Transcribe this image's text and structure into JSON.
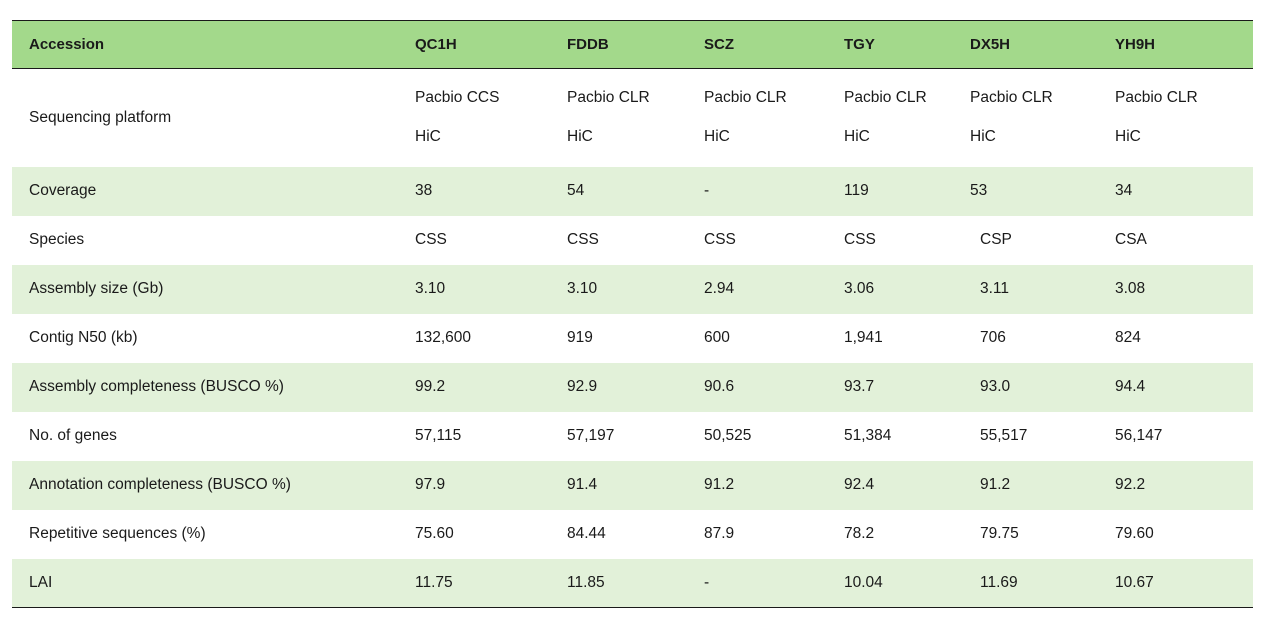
{
  "table": {
    "headers": [
      "Accession",
      "QC1H",
      "FDDB",
      "SCZ",
      "TGY",
      "DX5H",
      "YH9H"
    ],
    "platform_row": {
      "label": "Sequencing platform",
      "line1": [
        "Pacbio CCS",
        "Pacbio CLR",
        "Pacbio CLR",
        "Pacbio CLR",
        "Pacbio CLR",
        "Pacbio CLR"
      ],
      "line2": [
        "HiC",
        "HiC",
        "HiC",
        "HiC",
        "HiC",
        "HiC"
      ]
    },
    "rows": [
      {
        "label": "Coverage",
        "values": [
          "38",
          "54",
          "-",
          "119",
          "53",
          "34"
        ]
      },
      {
        "label": "Species",
        "values": [
          "CSS",
          "CSS",
          "CSS",
          "CSS",
          "CSP",
          "CSA"
        ]
      },
      {
        "label": "Assembly size (Gb)",
        "values": [
          "3.10",
          "3.10",
          "2.94",
          "3.06",
          "3.11",
          "3.08"
        ]
      },
      {
        "label": "Contig N50 (kb)",
        "values": [
          "132,600",
          "919",
          "600",
          "1,941",
          "706",
          "824"
        ]
      },
      {
        "label": "Assembly completeness (BUSCO %)",
        "values": [
          "99.2",
          "92.9",
          "90.6",
          "93.7",
          "93.0",
          "94.4"
        ]
      },
      {
        "label": "No. of genes",
        "values": [
          "57,115",
          "57,197",
          "50,525",
          "51,384",
          "55,517",
          "56,147"
        ]
      },
      {
        "label": "Annotation completeness (BUSCO %)",
        "values": [
          "97.9",
          "91.4",
          "91.2",
          "92.4",
          "91.2",
          "92.2"
        ]
      },
      {
        "label": "Repetitive sequences (%)",
        "values": [
          "75.60",
          "84.44",
          "87.9",
          "78.2",
          "79.75",
          "79.60"
        ]
      },
      {
        "label": "LAI",
        "values": [
          "11.75",
          "11.85",
          "-",
          "10.04",
          "11.69",
          "10.67"
        ]
      }
    ]
  },
  "colors": {
    "header_bg": "#a3d98b",
    "stripe_bg": "#e2f1d9",
    "rule": "#1a1a1a"
  }
}
